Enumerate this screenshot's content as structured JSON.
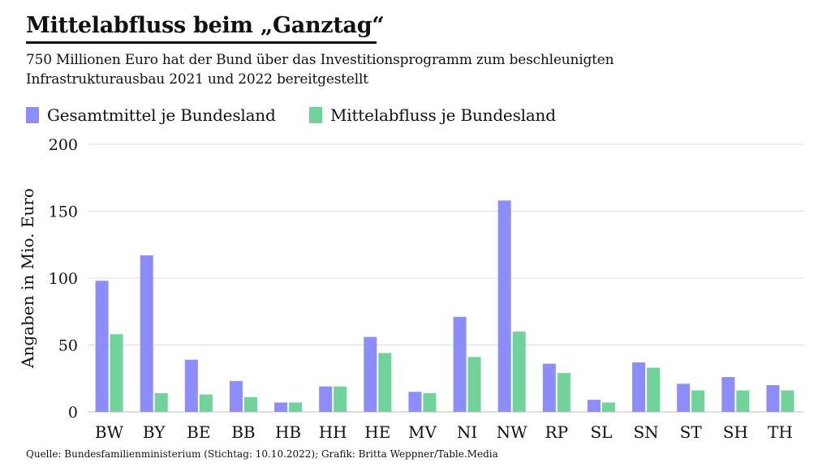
{
  "header": {
    "title": "Mittelabfluss beim „Ganztag“",
    "subtitle_line1": "750 Millionen Euro hat der Bund über das Investitionsprogramm zum beschleunigten",
    "subtitle_line2": "Infrastrukturausbau 2021 und 2022 bereitgestellt"
  },
  "legend": [
    {
      "label": "Gesamtmittel je Bundesland",
      "color": "#8c8cfb"
    },
    {
      "label": "Mittelabfluss je Bundesland",
      "color": "#6fd39a"
    }
  ],
  "source": "Quelle: Bundesfamilienministerium (Stichtag: 10.10.2022); Grafik: Britta Weppner/Table.Media",
  "chart_data": {
    "type": "bar",
    "title": "Mittelabfluss beim „Ganztag“",
    "xlabel": "",
    "ylabel": "Angaben in Mio. Euro",
    "ylim": [
      0,
      200
    ],
    "yticks": [
      0,
      50,
      100,
      150,
      200
    ],
    "grid": true,
    "legend_position": "top-left",
    "categories": [
      "BW",
      "BY",
      "BE",
      "BB",
      "HB",
      "HH",
      "HE",
      "MV",
      "NI",
      "NW",
      "RP",
      "SL",
      "SN",
      "ST",
      "SH",
      "TH"
    ],
    "series": [
      {
        "name": "Gesamtmittel je Bundesland",
        "color": "#8c8cfb",
        "values": [
          98,
          117,
          39,
          23,
          7,
          19,
          56,
          15,
          71,
          158,
          36,
          9,
          37,
          21,
          26,
          20
        ]
      },
      {
        "name": "Mittelabfluss je Bundesland",
        "color": "#6fd39a",
        "values": [
          58,
          14,
          13,
          11,
          7,
          19,
          44,
          14,
          41,
          60,
          29,
          7,
          33,
          16,
          16,
          16
        ]
      }
    ]
  }
}
